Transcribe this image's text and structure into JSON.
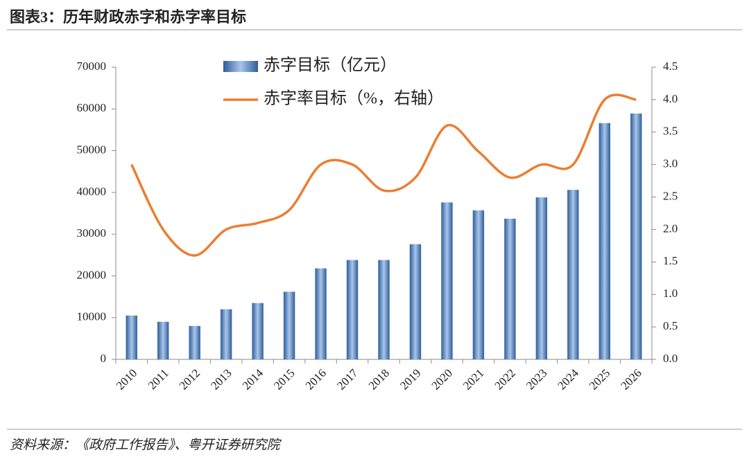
{
  "chart_data": {
    "type": "combo",
    "title": "图表3：历年财政赤字和赤字率目标",
    "source": "资料来源：《政府工作报告》、粤开证券研究院",
    "categories": [
      "2010",
      "2011",
      "2012",
      "2013",
      "2014",
      "2015",
      "2016",
      "2017",
      "2018",
      "2019",
      "2020",
      "2021",
      "2022",
      "2023",
      "2024",
      "2025",
      "2026"
    ],
    "series": [
      {
        "name": "赤字目标（亿元）",
        "type": "bar",
        "color": "#4f81bd",
        "values": [
          10500,
          9000,
          8000,
          12000,
          13500,
          16200,
          21800,
          23800,
          23800,
          27600,
          37600,
          35700,
          33700,
          38800,
          40600,
          56600,
          58900
        ]
      },
      {
        "name": "赤字率目标（%，右轴）",
        "type": "line",
        "axis": "y2",
        "color": "#ed7d31",
        "values": [
          3.0,
          2.0,
          1.6,
          2.0,
          2.1,
          2.3,
          3.0,
          3.0,
          2.6,
          2.8,
          3.6,
          3.2,
          2.8,
          3.0,
          3.0,
          4.0,
          4.0
        ]
      }
    ],
    "ylim": [
      0,
      70000
    ],
    "yticks": [
      0,
      10000,
      20000,
      30000,
      40000,
      50000,
      60000,
      70000
    ],
    "y2lim": [
      0,
      4.5
    ],
    "y2ticks": [
      {
        "value": 0,
        "label": "0.0"
      },
      0.5,
      {
        "value": 1,
        "label": "1.0"
      },
      1.5,
      {
        "value": 2,
        "label": "2.0"
      },
      2.5,
      {
        "value": 3,
        "label": "3.0"
      },
      3.5,
      {
        "value": 4,
        "label": "4.0"
      },
      4.5
    ]
  }
}
